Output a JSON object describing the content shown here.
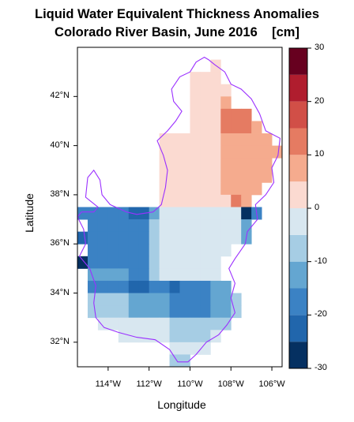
{
  "chart_data": {
    "type": "heatmap",
    "title_line1": "Liquid Water Equivalent Thickness Anomalies",
    "title_line2": "Colorado River Basin, June 2016    [cm]",
    "xlabel": "Longitude",
    "ylabel": "Latitude",
    "xlim": [
      -115.5,
      -105.5
    ],
    "ylim": [
      31,
      44
    ],
    "x_ticks": [
      {
        "value": -114,
        "label": "114°W"
      },
      {
        "value": -112,
        "label": "112°W"
      },
      {
        "value": -110,
        "label": "110°W"
      },
      {
        "value": -108,
        "label": "108°W"
      },
      {
        "value": -106,
        "label": "106°W"
      }
    ],
    "y_ticks": [
      {
        "value": 32,
        "label": "32°N"
      },
      {
        "value": 34,
        "label": "34°N"
      },
      {
        "value": 36,
        "label": "36°N"
      },
      {
        "value": 38,
        "label": "38°N"
      },
      {
        "value": 40,
        "label": "40°N"
      },
      {
        "value": 42,
        "label": "42°N"
      }
    ],
    "colorbar": {
      "range": [
        -30,
        30
      ],
      "ticks": [
        -30,
        -20,
        -10,
        0,
        10,
        20,
        30
      ],
      "boundaries": [
        -30,
        -25,
        -20,
        -15,
        -10,
        -5,
        0,
        5,
        10,
        15,
        20,
        25,
        30
      ],
      "colors": [
        "#053061",
        "#2166ac",
        "#3b82c4",
        "#64a6d1",
        "#a6cde4",
        "#d8e7f0",
        "#fbdad1",
        "#f5ab8e",
        "#e57b62",
        "#d14f47",
        "#b01d2e",
        "#67001f"
      ]
    },
    "grid_resolution_deg": 0.5,
    "grid_rows": [
      {
        "lat": 43.25,
        "cells": [
          {
            "lon": -108.75,
            "v": 3
          }
        ]
      },
      {
        "lat": 42.75,
        "cells": [
          {
            "lon_start": -109.75,
            "lon_end": -108.75,
            "v": 3
          }
        ]
      },
      {
        "lat": 42.25,
        "cells": [
          {
            "lon_start": -109.75,
            "lon_end": -108.25,
            "v": 3
          }
        ]
      },
      {
        "lat": 41.75,
        "cells": [
          {
            "lon_start": -109.75,
            "lon_end": -108.75,
            "v": 3
          },
          {
            "lon": -108.25,
            "v": 8
          }
        ]
      },
      {
        "lat": 41.25,
        "cells": [
          {
            "lon_start": -109.75,
            "lon_end": -108.75,
            "v": 3
          },
          {
            "lon": -108.25,
            "v": 13
          },
          {
            "lon_start": -107.75,
            "lon_end": -107.25,
            "v": 13
          }
        ]
      },
      {
        "lat": 40.75,
        "cells": [
          {
            "lon_start": -109.75,
            "lon_end": -108.75,
            "v": 3
          },
          {
            "lon_start": -108.25,
            "lon_end": -107.25,
            "v": 13
          },
          {
            "lon": -106.75,
            "v": 8
          }
        ]
      },
      {
        "lat": 40.25,
        "cells": [
          {
            "lon_start": -111.25,
            "lon_end": -110.25,
            "v": 3
          },
          {
            "lon_start": -109.75,
            "lon_end": -108.75,
            "v": 3
          },
          {
            "lon_start": -108.25,
            "lon_end": -106.25,
            "v": 8
          }
        ]
      },
      {
        "lat": 39.75,
        "cells": [
          {
            "lon_start": -111.25,
            "lon_end": -108.75,
            "v": 3
          },
          {
            "lon_start": -108.25,
            "lon_end": -105.75,
            "v": 8
          }
        ]
      },
      {
        "lat": 39.25,
        "cells": [
          {
            "lon_start": -111.25,
            "lon_end": -108.75,
            "v": 3
          },
          {
            "lon_start": -108.25,
            "lon_end": -106.25,
            "v": 8
          }
        ]
      },
      {
        "lat": 38.75,
        "cells": [
          {
            "lon_start": -111.25,
            "lon_end": -108.75,
            "v": 3
          },
          {
            "lon_start": -108.25,
            "lon_end": -106.25,
            "v": 8
          }
        ]
      },
      {
        "lat": 38.25,
        "cells": [
          {
            "lon_start": -111.25,
            "lon_end": -108.75,
            "v": 3
          },
          {
            "lon_start": -108.25,
            "lon_end": -106.75,
            "v": 8
          }
        ]
      },
      {
        "lat": 37.75,
        "cells": [
          {
            "lon_start": -111.25,
            "lon_end": -108.75,
            "v": 3
          },
          {
            "lon": -108.25,
            "v": 3
          },
          {
            "lon": -107.75,
            "v": 13
          },
          {
            "lon": -107.25,
            "v": 8
          }
        ]
      },
      {
        "lat": 37.25,
        "cells": [
          {
            "lon": -115.25,
            "v": -18
          },
          {
            "lon_start": -114.75,
            "lon_end": -113.25,
            "v": -18
          },
          {
            "lon_start": -112.75,
            "lon_end": -112.25,
            "v": -23
          },
          {
            "lon": -111.75,
            "v": -13
          },
          {
            "lon_start": -111.25,
            "lon_end": -107.75,
            "v": -3
          },
          {
            "lon": -107.25,
            "v": -28
          },
          {
            "lon": -106.75,
            "v": -18
          }
        ]
      },
      {
        "lat": 36.75,
        "cells": [
          {
            "lon_start": -114.75,
            "lon_end": -112.25,
            "v": -18
          },
          {
            "lon": -111.75,
            "v": -8
          },
          {
            "lon_start": -111.25,
            "lon_end": -107.75,
            "v": -3
          },
          {
            "lon": -107.25,
            "v": -13
          }
        ]
      },
      {
        "lat": 36.25,
        "cells": [
          {
            "lon": -115.25,
            "v": -23
          },
          {
            "lon_start": -114.75,
            "lon_end": -112.25,
            "v": -18
          },
          {
            "lon": -111.75,
            "v": -8
          },
          {
            "lon_start": -111.25,
            "lon_end": -107.75,
            "v": -3
          },
          {
            "lon": -107.25,
            "v": -13
          }
        ]
      },
      {
        "lat": 35.75,
        "cells": [
          {
            "lon_start": -114.75,
            "lon_end": -112.25,
            "v": -18
          },
          {
            "lon": -111.75,
            "v": -8
          },
          {
            "lon_start": -111.25,
            "lon_end": -108.25,
            "v": -3
          }
        ]
      },
      {
        "lat": 35.25,
        "cells": [
          {
            "lon": -115.25,
            "v": -28
          },
          {
            "lon_start": -114.75,
            "lon_end": -112.25,
            "v": -18
          },
          {
            "lon": -111.75,
            "v": -8
          },
          {
            "lon_start": -111.25,
            "lon_end": -108.75,
            "v": -3
          }
        ]
      },
      {
        "lat": 34.75,
        "cells": [
          {
            "lon_start": -114.75,
            "lon_end": -113.25,
            "v": -13
          },
          {
            "lon_start": -112.75,
            "lon_end": -112.25,
            "v": -18
          },
          {
            "lon": -111.75,
            "v": -8
          },
          {
            "lon_start": -111.25,
            "lon_end": -108.75,
            "v": -3
          }
        ]
      },
      {
        "lat": 34.25,
        "cells": [
          {
            "lon_start": -114.75,
            "lon_end": -113.25,
            "v": -18
          },
          {
            "lon_start": -112.75,
            "lon_end": -112.25,
            "v": -23
          },
          {
            "lon_start": -111.75,
            "lon_end": -111.25,
            "v": -18
          },
          {
            "lon": -110.75,
            "v": -23
          },
          {
            "lon_start": -110.25,
            "lon_end": -109.25,
            "v": -18
          },
          {
            "lon_start": -108.75,
            "lon_end": -108.25,
            "v": -13
          }
        ]
      },
      {
        "lat": 33.75,
        "cells": [
          {
            "lon_start": -114.75,
            "lon_end": -113.25,
            "v": -8
          },
          {
            "lon_start": -112.75,
            "lon_end": -111.25,
            "v": -13
          },
          {
            "lon_start": -110.75,
            "lon_end": -109.25,
            "v": -18
          },
          {
            "lon_start": -108.75,
            "lon_end": -108.25,
            "v": -13
          },
          {
            "lon": -107.75,
            "v": -8
          }
        ]
      },
      {
        "lat": 33.25,
        "cells": [
          {
            "lon_start": -114.75,
            "lon_end": -113.25,
            "v": -8
          },
          {
            "lon_start": -112.75,
            "lon_end": -111.25,
            "v": -13
          },
          {
            "lon_start": -110.75,
            "lon_end": -109.25,
            "v": -18
          },
          {
            "lon_start": -108.75,
            "lon_end": -108.25,
            "v": -13
          },
          {
            "lon": -107.75,
            "v": -8
          }
        ]
      },
      {
        "lat": 32.75,
        "cells": [
          {
            "lon_start": -114.25,
            "lon_end": -111.25,
            "v": -3
          },
          {
            "lon_start": -110.75,
            "lon_end": -109.25,
            "v": -8
          },
          {
            "lon_start": -108.75,
            "lon_end": -108.25,
            "v": -8
          }
        ]
      },
      {
        "lat": 32.25,
        "cells": [
          {
            "lon_start": -113.25,
            "lon_end": -111.25,
            "v": -3
          },
          {
            "lon_start": -110.75,
            "lon_end": -109.25,
            "v": -8
          },
          {
            "lon": -108.75,
            "v": -3
          }
        ]
      },
      {
        "lat": 31.75,
        "cells": [
          {
            "lon_start": -110.75,
            "lon_end": -109.25,
            "v": -3
          }
        ]
      },
      {
        "lat": 31.25,
        "cells": [
          {
            "lon_start": -110.75,
            "lon_end": -110.25,
            "v": -8
          }
        ]
      }
    ],
    "basin_outline": [
      [
        -109.1,
        43.5
      ],
      [
        -108.8,
        43.3
      ],
      [
        -108.3,
        43.0
      ],
      [
        -108.0,
        42.5
      ],
      [
        -107.5,
        42.3
      ],
      [
        -107.0,
        41.9
      ],
      [
        -106.6,
        41.3
      ],
      [
        -106.3,
        40.6
      ],
      [
        -105.6,
        40.3
      ],
      [
        -105.7,
        39.6
      ],
      [
        -106.0,
        39.1
      ],
      [
        -105.9,
        38.5
      ],
      [
        -106.3,
        38.0
      ],
      [
        -106.8,
        37.6
      ],
      [
        -106.7,
        37.0
      ],
      [
        -107.2,
        36.5
      ],
      [
        -107.3,
        36.0
      ],
      [
        -107.8,
        35.4
      ],
      [
        -108.1,
        35.0
      ],
      [
        -107.8,
        34.4
      ],
      [
        -108.0,
        33.8
      ],
      [
        -107.8,
        33.2
      ],
      [
        -108.2,
        32.7
      ],
      [
        -108.6,
        32.3
      ],
      [
        -109.2,
        32.0
      ],
      [
        -109.7,
        31.5
      ],
      [
        -110.1,
        31.2
      ],
      [
        -110.6,
        31.2
      ],
      [
        -111.0,
        31.7
      ],
      [
        -111.7,
        32.1
      ],
      [
        -112.6,
        32.2
      ],
      [
        -113.5,
        32.4
      ],
      [
        -114.2,
        32.6
      ],
      [
        -114.6,
        33.0
      ],
      [
        -114.7,
        33.6
      ],
      [
        -114.6,
        34.3
      ],
      [
        -114.9,
        35.0
      ],
      [
        -115.4,
        35.5
      ],
      [
        -115.1,
        36.0
      ],
      [
        -115.2,
        36.6
      ],
      [
        -115.5,
        37.1
      ],
      [
        -115.3,
        37.3
      ],
      [
        -114.7,
        37.3
      ],
      [
        -114.5,
        37.5
      ],
      [
        -115.1,
        37.9
      ],
      [
        -115.0,
        38.7
      ],
      [
        -114.7,
        39.0
      ],
      [
        -114.4,
        38.6
      ],
      [
        -114.3,
        38.0
      ],
      [
        -113.9,
        37.6
      ],
      [
        -113.1,
        37.3
      ],
      [
        -112.6,
        37.2
      ],
      [
        -111.8,
        37.3
      ],
      [
        -111.4,
        37.6
      ],
      [
        -111.2,
        38.3
      ],
      [
        -111.1,
        39.0
      ],
      [
        -111.3,
        39.6
      ],
      [
        -111.6,
        40.2
      ],
      [
        -111.1,
        40.6
      ],
      [
        -110.7,
        41.0
      ],
      [
        -110.4,
        41.4
      ],
      [
        -110.8,
        41.8
      ],
      [
        -110.9,
        42.3
      ],
      [
        -110.5,
        42.8
      ],
      [
        -110.0,
        43.0
      ],
      [
        -109.7,
        43.4
      ],
      [
        -109.3,
        43.6
      ],
      [
        -109.1,
        43.5
      ]
    ]
  }
}
